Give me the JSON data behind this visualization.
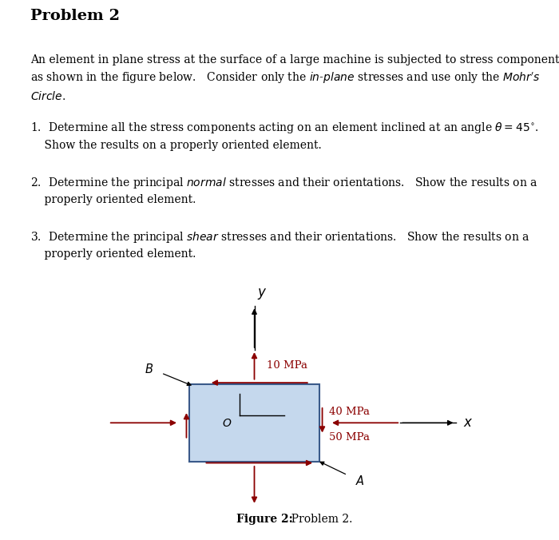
{
  "title": "Problem 2",
  "background_color": "#ffffff",
  "box_color": "#c5d8ed",
  "box_edge_color": "#3a5a8a",
  "arrow_color": "#8b0000",
  "text_color": "#000000",
  "red_text_color": "#8b0000",
  "figure_caption_bold": "Figure 2:",
  "figure_caption_normal": "  Problem 2.",
  "stress_10MPa": "10 MPa",
  "stress_40MPa": "40 MPa",
  "stress_50MPa": "50 MPa"
}
